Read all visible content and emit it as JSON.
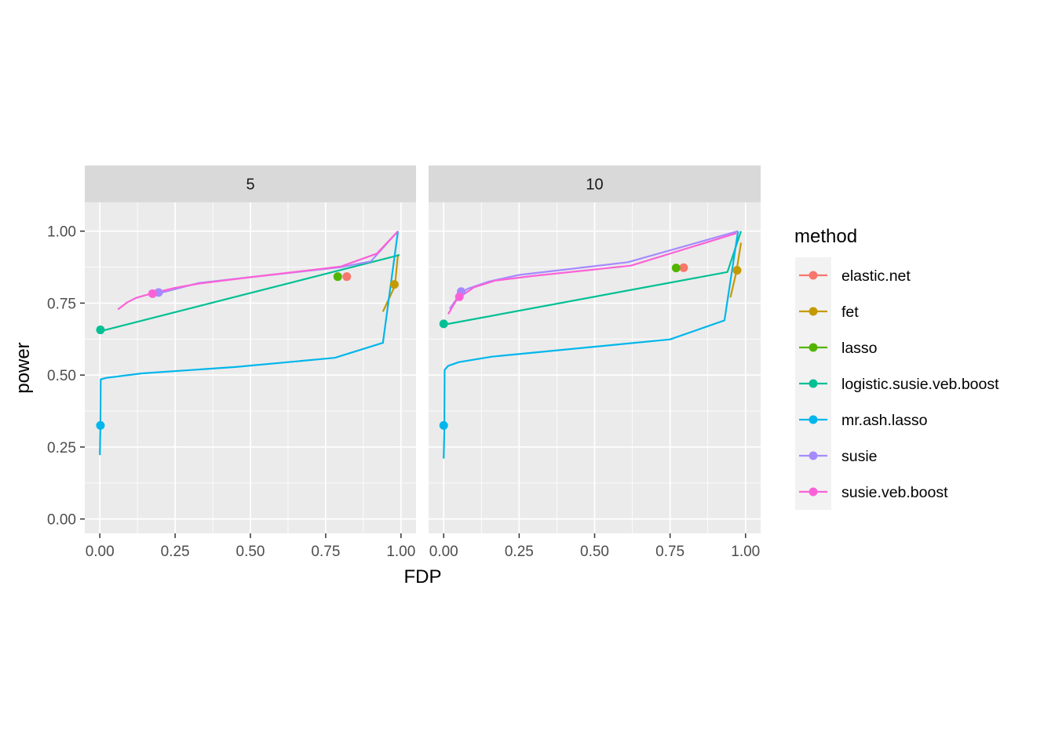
{
  "chart_data": {
    "type": "line",
    "xlabel": "FDP",
    "ylabel": "power",
    "xlim": [
      -0.05,
      1.05
    ],
    "ylim": [
      -0.05,
      1.1
    ],
    "x_ticks": [
      "0.00",
      "0.25",
      "0.50",
      "0.75",
      "1.00"
    ],
    "y_ticks": [
      "0.00",
      "0.25",
      "0.50",
      "0.75",
      "1.00"
    ],
    "grid": true,
    "legend": {
      "title": "method",
      "position": "right",
      "entries": [
        {
          "name": "elastic.net",
          "color": "#F8766D"
        },
        {
          "name": "fet",
          "color": "#C49A00"
        },
        {
          "name": "lasso",
          "color": "#53B400"
        },
        {
          "name": "logistic.susie.veb.boost",
          "color": "#00C094"
        },
        {
          "name": "mr.ash.lasso",
          "color": "#00B6EB"
        },
        {
          "name": "susie",
          "color": "#A58AFF"
        },
        {
          "name": "susie.veb.boost",
          "color": "#FB61D7"
        }
      ]
    },
    "panels": [
      {
        "strip": "5",
        "series": [
          {
            "name": "elastic.net",
            "line": [],
            "points": [
              [
                0.82,
                0.842
              ]
            ]
          },
          {
            "name": "fet",
            "line": [
              [
                0.94,
                0.72
              ],
              [
                0.98,
                0.81
              ],
              [
                0.99,
                0.92
              ]
            ],
            "points": [
              [
                0.978,
                0.815
              ]
            ]
          },
          {
            "name": "lasso",
            "line": [],
            "points": [
              [
                0.79,
                0.842
              ]
            ]
          },
          {
            "name": "logistic.susie.veb.boost",
            "line": [
              [
                0.0,
                0.652
              ],
              [
                0.8,
                0.865
              ],
              [
                0.995,
                0.917
              ]
            ],
            "points": [
              [
                0.002,
                0.657
              ]
            ]
          },
          {
            "name": "mr.ash.lasso",
            "line": [
              [
                0.0,
                0.222
              ],
              [
                0.002,
                0.32
              ],
              [
                0.003,
                0.485
              ],
              [
                0.02,
                0.49
              ],
              [
                0.14,
                0.506
              ],
              [
                0.45,
                0.528
              ],
              [
                0.78,
                0.56
              ],
              [
                0.94,
                0.612
              ],
              [
                0.99,
                1.0
              ]
            ],
            "points": [
              [
                0.002,
                0.325
              ]
            ]
          },
          {
            "name": "susie",
            "line": [
              [
                0.17,
                0.775
              ],
              [
                0.2,
                0.785
              ],
              [
                0.33,
                0.82
              ],
              [
                0.5,
                0.84
              ],
              [
                0.8,
                0.875
              ],
              [
                0.9,
                0.895
              ],
              [
                0.99,
                1.0
              ]
            ],
            "points": [
              [
                0.195,
                0.787
              ]
            ]
          },
          {
            "name": "susie.veb.boost",
            "line": [
              [
                0.06,
                0.728
              ],
              [
                0.09,
                0.752
              ],
              [
                0.12,
                0.768
              ],
              [
                0.17,
                0.783
              ],
              [
                0.25,
                0.803
              ],
              [
                0.33,
                0.818
              ],
              [
                0.5,
                0.84
              ],
              [
                0.8,
                0.877
              ],
              [
                0.92,
                0.922
              ],
              [
                0.99,
                1.0
              ]
            ],
            "points": [
              [
                0.175,
                0.783
              ]
            ]
          }
        ]
      },
      {
        "strip": "10",
        "series": [
          {
            "name": "elastic.net",
            "line": [],
            "points": [
              [
                0.795,
                0.873
              ]
            ]
          },
          {
            "name": "fet",
            "line": [
              [
                0.95,
                0.77
              ],
              [
                0.97,
                0.86
              ],
              [
                0.985,
                0.96
              ]
            ],
            "points": [
              [
                0.972,
                0.864
              ]
            ]
          },
          {
            "name": "lasso",
            "line": [],
            "points": [
              [
                0.77,
                0.872
              ]
            ]
          },
          {
            "name": "logistic.susie.veb.boost",
            "line": [
              [
                0.0,
                0.675
              ],
              [
                0.94,
                0.858
              ],
              [
                0.985,
                1.0
              ]
            ],
            "points": [
              [
                0.0,
                0.678
              ]
            ]
          },
          {
            "name": "mr.ash.lasso",
            "line": [
              [
                0.0,
                0.21
              ],
              [
                0.002,
                0.3
              ],
              [
                0.003,
                0.518
              ],
              [
                0.015,
                0.532
              ],
              [
                0.05,
                0.545
              ],
              [
                0.16,
                0.564
              ],
              [
                0.75,
                0.624
              ],
              [
                0.93,
                0.69
              ],
              [
                0.975,
                1.0
              ]
            ],
            "points": [
              [
                0.0,
                0.325
              ]
            ]
          },
          {
            "name": "susie",
            "line": [
              [
                0.02,
                0.73
              ],
              [
                0.055,
                0.783
              ],
              [
                0.08,
                0.8
              ],
              [
                0.15,
                0.825
              ],
              [
                0.25,
                0.848
              ],
              [
                0.61,
                0.892
              ],
              [
                0.975,
                1.0
              ]
            ],
            "points": [
              [
                0.058,
                0.79
              ]
            ]
          },
          {
            "name": "susie.veb.boost",
            "line": [
              [
                0.015,
                0.712
              ],
              [
                0.04,
                0.757
              ],
              [
                0.055,
                0.772
              ],
              [
                0.1,
                0.805
              ],
              [
                0.17,
                0.828
              ],
              [
                0.3,
                0.845
              ],
              [
                0.62,
                0.88
              ],
              [
                0.97,
                0.993
              ]
            ],
            "points": [
              [
                0.052,
                0.772
              ]
            ]
          }
        ]
      }
    ]
  }
}
